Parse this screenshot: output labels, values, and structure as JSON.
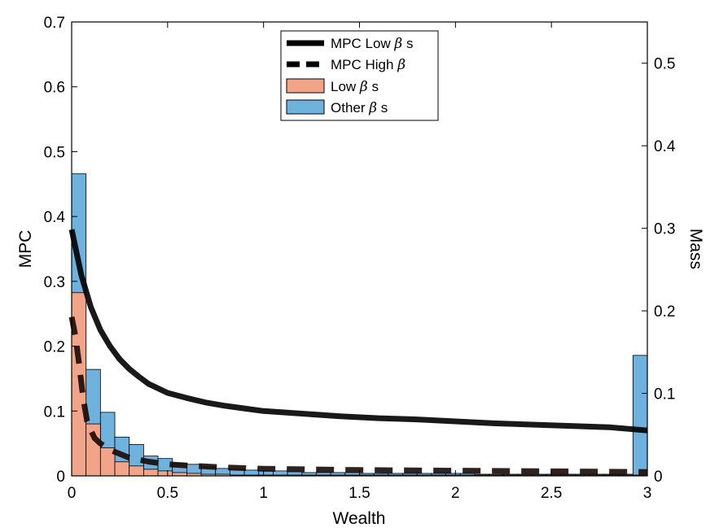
{
  "chart_data": {
    "type": "bar",
    "xlabel": "Wealth",
    "ylabel": "MPC",
    "y2label": "Mass",
    "xlim": [
      0,
      3
    ],
    "ylim": [
      0,
      0.7
    ],
    "y2lim": [
      0,
      0.55
    ],
    "xticks": [
      "0",
      "0.5",
      "1",
      "1.5",
      "2",
      "2.5",
      "3"
    ],
    "yticks": [
      "0",
      "0.1",
      "0.2",
      "0.3",
      "0.4",
      "0.5",
      "0.6",
      "0.7"
    ],
    "y2ticks": [
      "0",
      "0.1",
      "0.2",
      "0.3",
      "0.4",
      "0.5"
    ],
    "legend_position": "top-center",
    "grid": false,
    "bin_width": 0.075,
    "histograms": [
      {
        "name": "Low β s",
        "color": "#f2a488",
        "axis": "right",
        "values": [
          0.222,
          0.063,
          0.034,
          0.017,
          0.012,
          0.008,
          0.006,
          0.004,
          0.003,
          0.002,
          0.002,
          0.001,
          0.001,
          0.001,
          0.001,
          0.001,
          0.001,
          0.001,
          0.001,
          0.001,
          0.001,
          0.001,
          0.001,
          0.001,
          0.001,
          0.001,
          0.001,
          0.001,
          0.001,
          0.001,
          0.001,
          0.001,
          0.001,
          0.001,
          0.001,
          0.001,
          0.001,
          0.001,
          0.001,
          0.001
        ]
      },
      {
        "name": "Other β s",
        "color": "#6fb2dd",
        "axis": "right",
        "values": [
          0.366,
          0.129,
          0.077,
          0.047,
          0.038,
          0.024,
          0.021,
          0.015,
          0.014,
          0.011,
          0.009,
          0.008,
          0.007,
          0.006,
          0.006,
          0.005,
          0.004,
          0.004,
          0.004,
          0.004,
          0.003,
          0.003,
          0.003,
          0.003,
          0.003,
          0.003,
          0.003,
          0.003,
          0.002,
          0.002,
          0.002,
          0.002,
          0.002,
          0.002,
          0.002,
          0.002,
          0.002,
          0.002,
          0.002,
          0.146
        ]
      }
    ],
    "series": [
      {
        "name": "MPC Low β s",
        "style": "solid",
        "color": "#000000",
        "axis": "left",
        "x": [
          0.0,
          0.05,
          0.1,
          0.15,
          0.2,
          0.25,
          0.3,
          0.35,
          0.4,
          0.5,
          0.6,
          0.7,
          0.8,
          0.9,
          1.0,
          1.2,
          1.4,
          1.6,
          1.8,
          2.0,
          2.2,
          2.4,
          2.6,
          2.8,
          3.0
        ],
        "y": [
          0.38,
          0.31,
          0.26,
          0.225,
          0.2,
          0.18,
          0.165,
          0.153,
          0.142,
          0.128,
          0.12,
          0.113,
          0.108,
          0.104,
          0.1,
          0.096,
          0.092,
          0.089,
          0.087,
          0.084,
          0.081,
          0.079,
          0.077,
          0.075,
          0.07
        ]
      },
      {
        "name": "MPC High β",
        "style": "dashed",
        "color": "#000000",
        "axis": "left",
        "x": [
          0.0,
          0.02,
          0.04,
          0.06,
          0.08,
          0.1,
          0.12,
          0.15,
          0.2,
          0.25,
          0.3,
          0.4,
          0.5,
          0.6,
          0.8,
          1.0,
          1.5,
          2.0,
          2.5,
          3.0
        ],
        "y": [
          0.245,
          0.215,
          0.17,
          0.12,
          0.085,
          0.07,
          0.058,
          0.05,
          0.04,
          0.034,
          0.028,
          0.022,
          0.018,
          0.016,
          0.013,
          0.011,
          0.009,
          0.008,
          0.007,
          0.006
        ]
      }
    ]
  },
  "legend": {
    "items": [
      {
        "label": "MPC Low ",
        "beta": "β",
        "suffix": " s"
      },
      {
        "label": "MPC High ",
        "beta": "β",
        "suffix": ""
      },
      {
        "label": "Low ",
        "beta": "β",
        "suffix": " s"
      },
      {
        "label": "Other ",
        "beta": "β",
        "suffix": " s"
      }
    ]
  }
}
